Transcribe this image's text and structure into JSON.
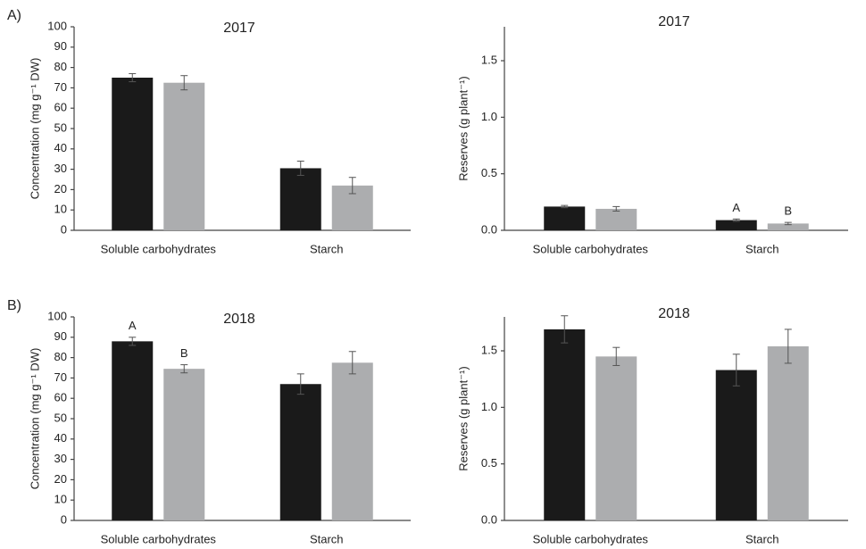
{
  "chart_data": [
    {
      "type": "bar",
      "panel_label": "A)",
      "title": "2017",
      "ylabel": "Concentration (mg g⁻¹ DW)",
      "categories": [
        "Soluble carbohydrates",
        "Starch"
      ],
      "series": [
        {
          "color": "#1a1a1a",
          "values": [
            75,
            30.5
          ],
          "errors": [
            2,
            3.5
          ],
          "letters": [
            null,
            null
          ]
        },
        {
          "color": "#acadaf",
          "values": [
            72.5,
            22
          ],
          "errors": [
            3.5,
            4
          ],
          "letters": [
            null,
            null
          ]
        }
      ],
      "ylim": [
        0,
        100
      ],
      "yticks": [
        0,
        10,
        20,
        30,
        40,
        50,
        60,
        70,
        80,
        90,
        100
      ],
      "grid": false
    },
    {
      "type": "bar",
      "title": "2017",
      "ylabel": "Reserves (g plant⁻¹)",
      "categories": [
        "Soluble carbohydrates",
        "Starch"
      ],
      "series": [
        {
          "color": "#1a1a1a",
          "values": [
            0.21,
            0.09
          ],
          "errors": [
            0.01,
            0.01
          ],
          "letters": [
            null,
            "A"
          ]
        },
        {
          "color": "#acadaf",
          "values": [
            0.19,
            0.06
          ],
          "errors": [
            0.02,
            0.01
          ],
          "letters": [
            null,
            "B"
          ]
        }
      ],
      "ylim": [
        0,
        1.8
      ],
      "yticks": [
        {
          "value": 0,
          "label": "0.0"
        },
        {
          "value": 0.5,
          "label": "0.5"
        },
        {
          "value": 1,
          "label": "1.0"
        },
        {
          "value": 1.5,
          "label": "1.5"
        }
      ],
      "grid": false
    },
    {
      "type": "bar",
      "panel_label": "B)",
      "title": "2018",
      "ylabel": "Concentration (mg g⁻¹ DW)",
      "categories": [
        "Soluble carbohydrates",
        "Starch"
      ],
      "series": [
        {
          "color": "#1a1a1a",
          "values": [
            88,
            67
          ],
          "errors": [
            2,
            5
          ],
          "letters": [
            "A",
            null
          ]
        },
        {
          "color": "#acadaf",
          "values": [
            74.5,
            77.5
          ],
          "errors": [
            2,
            5.5
          ],
          "letters": [
            "B",
            null
          ]
        }
      ],
      "ylim": [
        0,
        100
      ],
      "yticks": [
        0,
        10,
        20,
        30,
        40,
        50,
        60,
        70,
        80,
        90,
        100
      ],
      "grid": false
    },
    {
      "type": "bar",
      "title": "2018",
      "ylabel": "Reserves (g plant⁻¹)",
      "categories": [
        "Soluble carbohydrates",
        "Starch"
      ],
      "series": [
        {
          "color": "#1a1a1a",
          "values": [
            1.69,
            1.33
          ],
          "errors": [
            0.12,
            0.14
          ],
          "letters": [
            null,
            null
          ]
        },
        {
          "color": "#acadaf",
          "values": [
            1.45,
            1.54
          ],
          "errors": [
            0.08,
            0.15
          ],
          "letters": [
            null,
            null
          ]
        }
      ],
      "ylim": [
        0,
        1.8
      ],
      "yticks": [
        {
          "value": 0,
          "label": "0.0"
        },
        {
          "value": 0.5,
          "label": "0.5"
        },
        {
          "value": 1,
          "label": "1.0"
        },
        {
          "value": 1.5,
          "label": "1.5"
        }
      ],
      "grid": false
    }
  ]
}
